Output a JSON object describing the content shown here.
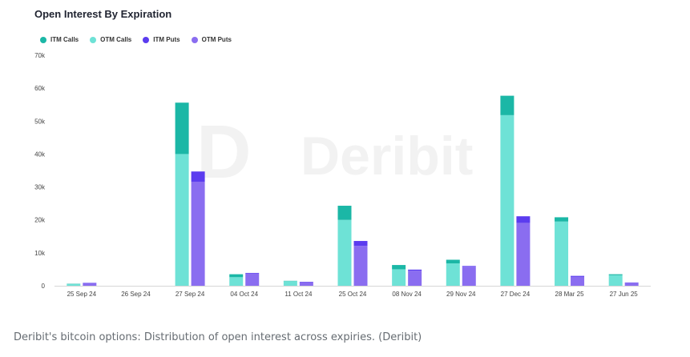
{
  "chart_data": {
    "type": "bar",
    "stacked": true,
    "title": "Open Interest By Expiration",
    "watermark": "Deribit",
    "legend_position": "top-left",
    "grid": false,
    "ylim": [
      0,
      70000
    ],
    "y_ticks": [
      "0",
      "10k",
      "20k",
      "30k",
      "40k",
      "50k",
      "60k",
      "70k"
    ],
    "categories": [
      "25 Sep 24",
      "26 Sep 24",
      "27 Sep 24",
      "04 Oct 24",
      "11 Oct 24",
      "25 Oct 24",
      "08 Nov 24",
      "29 Nov 24",
      "27 Dec 24",
      "28 Mar 25",
      "27 Jun 25"
    ],
    "groups": [
      {
        "stack": "calls",
        "series": [
          {
            "name": "OTM Calls",
            "color": "#6ee2d6",
            "values": [
              500,
              0,
              40000,
              2600,
              1400,
              20000,
              5000,
              6800,
              51800,
              19500,
              3200
            ]
          },
          {
            "name": "ITM Calls",
            "color": "#1bb7a6",
            "values": [
              100,
              0,
              15600,
              900,
              100,
              4300,
              1300,
              1100,
              5900,
              1300,
              300
            ]
          }
        ]
      },
      {
        "stack": "puts",
        "series": [
          {
            "name": "OTM Puts",
            "color": "#8a6df0",
            "values": [
              800,
              0,
              31600,
              3700,
              1100,
              12100,
              4600,
              5800,
              19100,
              2700,
              900
            ]
          },
          {
            "name": "ITM Puts",
            "color": "#5b3cef",
            "values": [
              100,
              0,
              3100,
              200,
              100,
              1500,
              300,
              200,
              2000,
              300,
              100
            ]
          }
        ]
      }
    ],
    "legend": [
      {
        "name": "ITM Calls",
        "color": "#1bb7a6"
      },
      {
        "name": "OTM Calls",
        "color": "#6ee2d6"
      },
      {
        "name": "ITM Puts",
        "color": "#5b3cef"
      },
      {
        "name": "OTM Puts",
        "color": "#8a6df0"
      }
    ]
  },
  "caption": "Deribit's bitcoin options: Distribution of open interest across expiries. (Deribit)"
}
